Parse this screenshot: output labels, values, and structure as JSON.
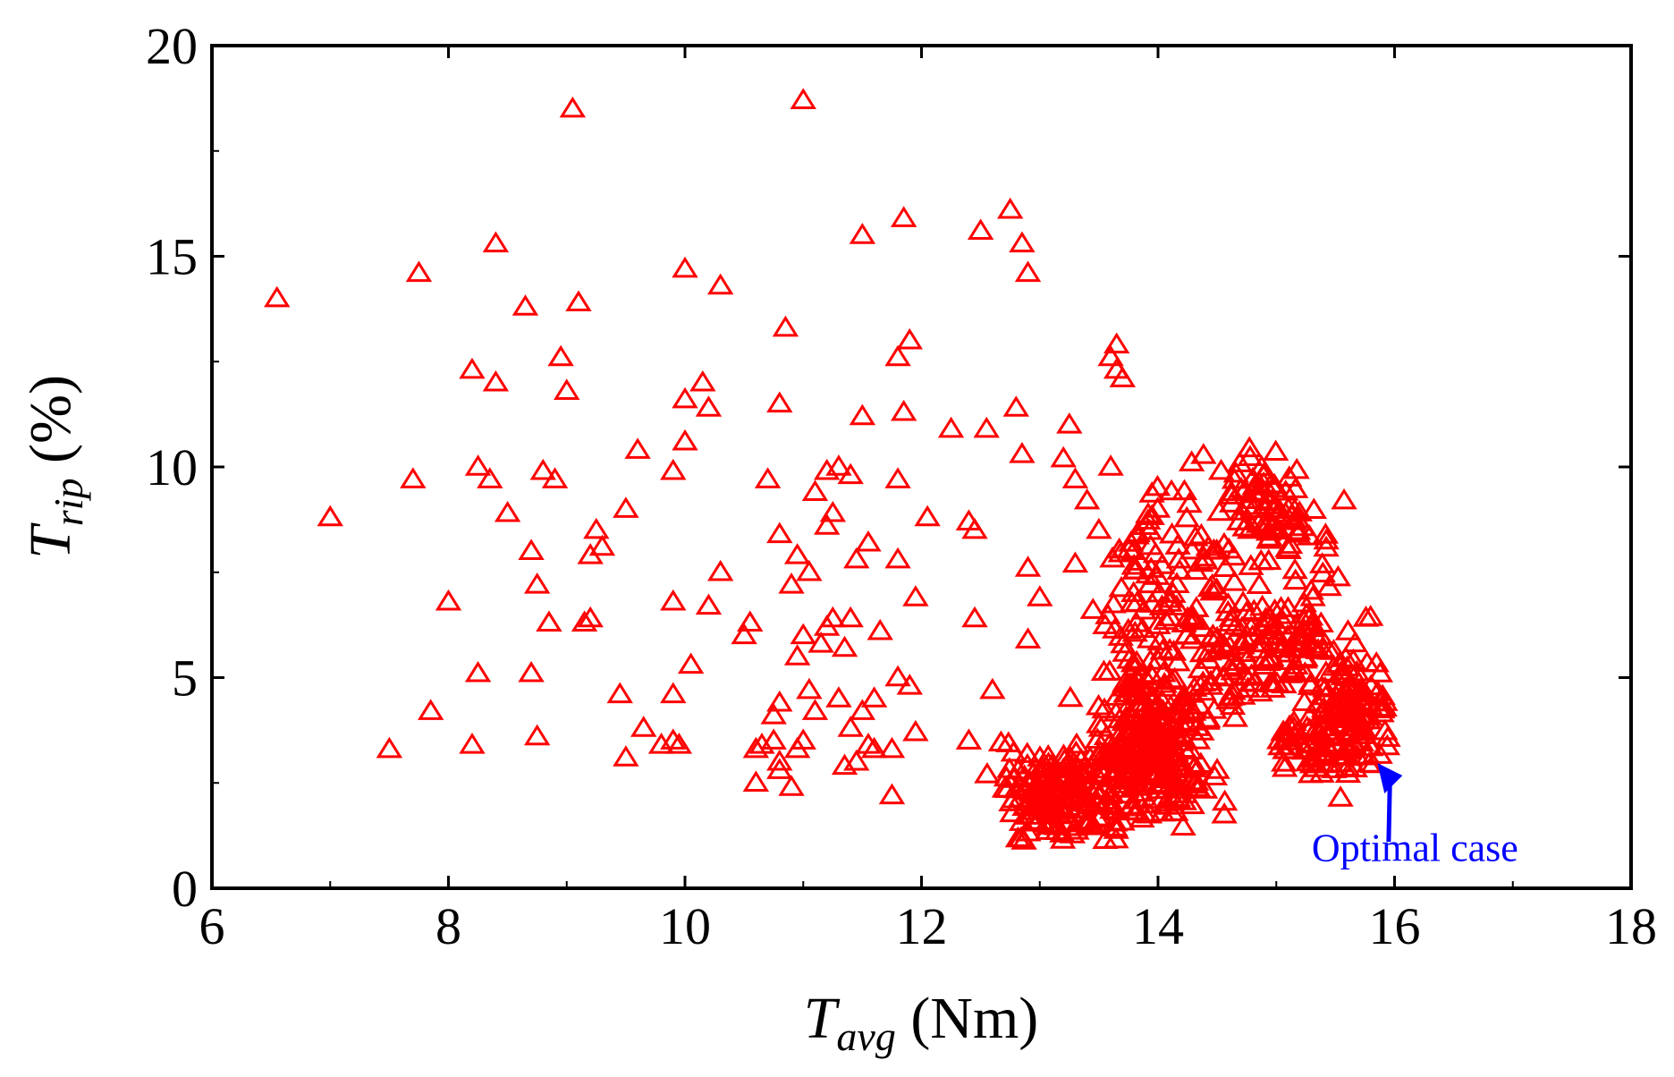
{
  "chart_data": {
    "type": "scatter",
    "title": "",
    "xlabel": {
      "main": "T",
      "sub": "avg",
      "unit": " (Nm)"
    },
    "ylabel": {
      "main": "T",
      "sub": "rip",
      "unit": " (%)"
    },
    "xlim": [
      6,
      18
    ],
    "ylim": [
      0,
      20
    ],
    "xticks": [
      6,
      8,
      10,
      12,
      14,
      16,
      18
    ],
    "yticks": [
      0,
      5,
      10,
      15,
      20
    ],
    "grid": false,
    "marker": "triangle-open",
    "color": "#ff0000",
    "annotation": {
      "text": "Optimal case",
      "color": "#0000ff",
      "point": [
        15.9,
        3.1
      ],
      "text_at": [
        16.5,
        0.8
      ]
    },
    "sparse_points": [
      [
        6.55,
        14.0
      ],
      [
        7.0,
        8.8
      ],
      [
        7.5,
        3.3
      ],
      [
        7.7,
        9.7
      ],
      [
        7.75,
        14.6
      ],
      [
        7.85,
        4.2
      ],
      [
        8.0,
        6.8
      ],
      [
        8.2,
        3.4
      ],
      [
        8.2,
        12.3
      ],
      [
        8.25,
        5.1
      ],
      [
        8.25,
        10.0
      ],
      [
        8.35,
        9.7
      ],
      [
        8.4,
        12.0
      ],
      [
        8.4,
        15.3
      ],
      [
        8.5,
        8.9
      ],
      [
        8.65,
        13.8
      ],
      [
        8.7,
        5.1
      ],
      [
        8.7,
        8.0
      ],
      [
        8.75,
        3.6
      ],
      [
        8.75,
        7.2
      ],
      [
        8.8,
        9.9
      ],
      [
        8.85,
        6.3
      ],
      [
        8.9,
        9.7
      ],
      [
        8.95,
        12.6
      ],
      [
        9.0,
        11.8
      ],
      [
        9.05,
        18.5
      ],
      [
        9.1,
        13.9
      ],
      [
        9.15,
        6.3
      ],
      [
        9.2,
        6.4
      ],
      [
        9.2,
        7.9
      ],
      [
        9.25,
        8.5
      ],
      [
        9.3,
        8.1
      ],
      [
        9.45,
        4.6
      ],
      [
        9.5,
        3.1
      ],
      [
        9.5,
        9.0
      ],
      [
        9.6,
        10.4
      ],
      [
        9.65,
        3.8
      ],
      [
        9.8,
        3.4
      ],
      [
        9.9,
        4.6
      ],
      [
        9.9,
        6.8
      ],
      [
        9.9,
        9.9
      ],
      [
        9.9,
        3.5
      ],
      [
        9.95,
        3.4
      ],
      [
        10.0,
        10.6
      ],
      [
        10.0,
        11.6
      ],
      [
        10.0,
        14.7
      ],
      [
        10.05,
        5.3
      ],
      [
        10.15,
        12.0
      ],
      [
        10.2,
        11.4
      ],
      [
        10.2,
        6.7
      ],
      [
        10.3,
        7.5
      ],
      [
        10.3,
        14.3
      ],
      [
        10.5,
        6.0
      ],
      [
        10.55,
        6.3
      ],
      [
        10.6,
        2.5
      ],
      [
        10.6,
        3.3
      ],
      [
        10.65,
        3.4
      ],
      [
        10.7,
        9.7
      ],
      [
        10.75,
        4.1
      ],
      [
        10.75,
        3.5
      ],
      [
        10.8,
        2.8
      ],
      [
        10.8,
        3.0
      ],
      [
        10.8,
        4.4
      ],
      [
        10.8,
        8.4
      ],
      [
        10.8,
        11.5
      ],
      [
        10.85,
        13.3
      ],
      [
        10.9,
        2.4
      ],
      [
        10.9,
        7.2
      ],
      [
        10.95,
        3.3
      ],
      [
        10.95,
        5.5
      ],
      [
        10.95,
        7.9
      ],
      [
        11.0,
        3.5
      ],
      [
        11.0,
        6.0
      ],
      [
        11.0,
        18.7
      ],
      [
        11.05,
        4.7
      ],
      [
        11.05,
        7.5
      ],
      [
        11.1,
        9.4
      ],
      [
        11.1,
        4.2
      ],
      [
        11.15,
        5.8
      ],
      [
        11.2,
        8.6
      ],
      [
        11.2,
        6.2
      ],
      [
        11.2,
        9.9
      ],
      [
        11.25,
        8.9
      ],
      [
        11.25,
        6.4
      ],
      [
        11.3,
        4.5
      ],
      [
        11.3,
        10.0
      ],
      [
        11.35,
        2.9
      ],
      [
        11.35,
        5.7
      ],
      [
        11.4,
        6.4
      ],
      [
        11.4,
        9.8
      ],
      [
        11.4,
        3.8
      ],
      [
        11.45,
        3.0
      ],
      [
        11.45,
        7.8
      ],
      [
        11.5,
        11.2
      ],
      [
        11.5,
        15.5
      ],
      [
        11.5,
        4.2
      ],
      [
        11.55,
        3.4
      ],
      [
        11.55,
        8.2
      ],
      [
        11.6,
        3.3
      ],
      [
        11.6,
        4.5
      ],
      [
        11.65,
        6.1
      ],
      [
        11.75,
        2.2
      ],
      [
        11.75,
        3.3
      ],
      [
        11.8,
        5.0
      ],
      [
        11.8,
        7.8
      ],
      [
        11.8,
        9.7
      ],
      [
        11.8,
        12.6
      ],
      [
        11.85,
        15.9
      ],
      [
        11.85,
        11.3
      ],
      [
        11.9,
        4.8
      ],
      [
        11.9,
        13.0
      ],
      [
        11.95,
        6.9
      ],
      [
        11.95,
        3.7
      ],
      [
        12.05,
        8.8
      ],
      [
        12.25,
        10.9
      ],
      [
        12.4,
        3.5
      ],
      [
        12.4,
        8.7
      ],
      [
        12.45,
        6.4
      ],
      [
        12.45,
        8.5
      ],
      [
        12.5,
        15.6
      ],
      [
        12.55,
        10.9
      ],
      [
        12.6,
        4.7
      ],
      [
        12.75,
        16.1
      ],
      [
        12.8,
        11.4
      ],
      [
        12.85,
        10.3
      ],
      [
        12.85,
        15.3
      ],
      [
        12.9,
        14.6
      ],
      [
        12.9,
        7.6
      ],
      [
        12.9,
        5.9
      ],
      [
        13.0,
        6.9
      ],
      [
        13.2,
        10.2
      ],
      [
        13.25,
        11.0
      ],
      [
        13.3,
        9.7
      ],
      [
        13.4,
        9.2
      ],
      [
        13.6,
        10.0
      ],
      [
        13.6,
        12.6
      ],
      [
        13.65,
        12.9
      ],
      [
        13.65,
        12.3
      ],
      [
        13.7,
        12.1
      ],
      [
        13.3,
        7.7
      ],
      [
        13.5,
        8.5
      ],
      [
        13.45,
        6.6
      ]
    ],
    "dense_clusters": [
      {
        "center": [
          12.95,
          2.2
        ],
        "spread": [
          0.25,
          0.9
        ],
        "count": 70
      },
      {
        "center": [
          13.3,
          2.2
        ],
        "spread": [
          0.35,
          1.0
        ],
        "count": 80
      },
      {
        "center": [
          13.6,
          3.0
        ],
        "spread": [
          0.35,
          1.3
        ],
        "count": 80
      },
      {
        "center": [
          13.9,
          3.4
        ],
        "spread": [
          0.3,
          1.6
        ],
        "count": 110
      },
      {
        "center": [
          14.1,
          3.4
        ],
        "spread": [
          0.35,
          1.5
        ],
        "count": 110
      },
      {
        "center": [
          13.85,
          5.8
        ],
        "spread": [
          0.3,
          1.5
        ],
        "count": 45
      },
      {
        "center": [
          13.95,
          8.3
        ],
        "spread": [
          0.25,
          0.9
        ],
        "count": 30
      },
      {
        "center": [
          14.4,
          7.2
        ],
        "spread": [
          0.35,
          1.6
        ],
        "count": 45
      },
      {
        "center": [
          14.6,
          5.2
        ],
        "spread": [
          0.35,
          1.1
        ],
        "count": 40
      },
      {
        "center": [
          14.8,
          9.4
        ],
        "spread": [
          0.35,
          1.1
        ],
        "count": 40
      },
      {
        "center": [
          15.0,
          5.8
        ],
        "spread": [
          0.3,
          1.0
        ],
        "count": 55
      },
      {
        "center": [
          15.05,
          8.7
        ],
        "spread": [
          0.3,
          1.0
        ],
        "count": 45
      },
      {
        "center": [
          15.3,
          6.3
        ],
        "spread": [
          0.3,
          1.0
        ],
        "count": 35
      },
      {
        "center": [
          15.45,
          3.6
        ],
        "spread": [
          0.35,
          0.8
        ],
        "count": 90
      },
      {
        "center": [
          15.65,
          4.3
        ],
        "spread": [
          0.25,
          1.1
        ],
        "count": 80
      }
    ]
  }
}
